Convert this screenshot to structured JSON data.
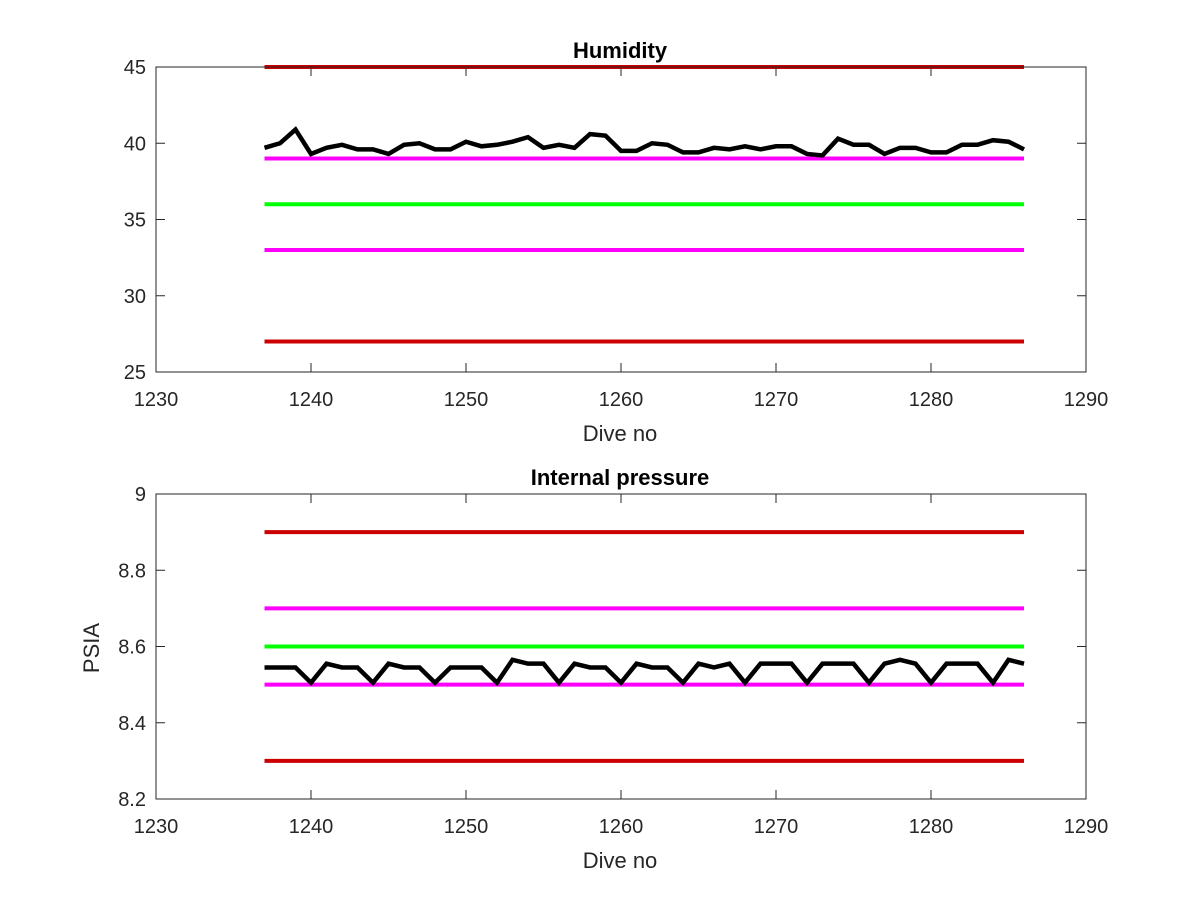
{
  "chart_data": [
    {
      "type": "line",
      "title": "Humidity",
      "xlabel": "Dive no",
      "ylabel": "",
      "xlim": [
        1230,
        1290
      ],
      "ylim": [
        25,
        45
      ],
      "xticks": [
        "1230",
        "1240",
        "1250",
        "1260",
        "1270",
        "1280",
        "1290"
      ],
      "yticks": [
        "25",
        "30",
        "35",
        "40",
        "45"
      ],
      "grid": false,
      "series": [
        {
          "color": "#cc0000",
          "x": [
            1237,
            1286
          ],
          "y": [
            45,
            45
          ]
        },
        {
          "color": "#cc0000",
          "x": [
            1237,
            1286
          ],
          "y": [
            27,
            27
          ]
        },
        {
          "color": "#ff00ff",
          "x": [
            1237,
            1286
          ],
          "y": [
            39,
            39
          ]
        },
        {
          "color": "#ff00ff",
          "x": [
            1237,
            1286
          ],
          "y": [
            33,
            33
          ]
        },
        {
          "color": "#00ff00",
          "x": [
            1237,
            1286
          ],
          "y": [
            36,
            36
          ]
        },
        {
          "color": "#000000",
          "x": [
            1237,
            1238,
            1239,
            1240,
            1241,
            1242,
            1243,
            1244,
            1245,
            1246,
            1247,
            1248,
            1249,
            1250,
            1251,
            1252,
            1253,
            1254,
            1255,
            1256,
            1257,
            1258,
            1259,
            1260,
            1261,
            1262,
            1263,
            1264,
            1265,
            1266,
            1267,
            1268,
            1269,
            1270,
            1271,
            1272,
            1273,
            1274,
            1275,
            1276,
            1277,
            1278,
            1279,
            1280,
            1281,
            1282,
            1283,
            1284,
            1285,
            1286
          ],
          "y": [
            39.7,
            40.0,
            40.9,
            39.3,
            39.7,
            39.9,
            39.6,
            39.6,
            39.3,
            39.9,
            40.0,
            39.6,
            39.6,
            40.1,
            39.8,
            39.9,
            40.1,
            40.4,
            39.7,
            39.9,
            39.7,
            40.6,
            40.5,
            39.5,
            39.5,
            40.0,
            39.9,
            39.4,
            39.4,
            39.7,
            39.6,
            39.8,
            39.6,
            39.8,
            39.8,
            39.3,
            39.2,
            40.3,
            39.9,
            39.9,
            39.3,
            39.7,
            39.7,
            39.4,
            39.4,
            39.9,
            39.9,
            40.2,
            40.1,
            39.6
          ]
        }
      ]
    },
    {
      "type": "line",
      "title": "Internal pressure",
      "xlabel": "Dive no",
      "ylabel": "PSIA",
      "xlim": [
        1230,
        1290
      ],
      "ylim": [
        8.2,
        9
      ],
      "xticks": [
        "1230",
        "1240",
        "1250",
        "1260",
        "1270",
        "1280",
        "1290"
      ],
      "yticks": [
        "8.2",
        "8.4",
        "8.6",
        "8.8",
        "9"
      ],
      "grid": false,
      "series": [
        {
          "color": "#cc0000",
          "x": [
            1237,
            1286
          ],
          "y": [
            8.9,
            8.9
          ]
        },
        {
          "color": "#cc0000",
          "x": [
            1237,
            1286
          ],
          "y": [
            8.3,
            8.3
          ]
        },
        {
          "color": "#ff00ff",
          "x": [
            1237,
            1286
          ],
          "y": [
            8.7,
            8.7
          ]
        },
        {
          "color": "#ff00ff",
          "x": [
            1237,
            1286
          ],
          "y": [
            8.5,
            8.5
          ]
        },
        {
          "color": "#00ff00",
          "x": [
            1237,
            1286
          ],
          "y": [
            8.6,
            8.6
          ]
        },
        {
          "color": "#000000",
          "x": [
            1237,
            1238,
            1239,
            1240,
            1241,
            1242,
            1243,
            1244,
            1245,
            1246,
            1247,
            1248,
            1249,
            1250,
            1251,
            1252,
            1253,
            1254,
            1255,
            1256,
            1257,
            1258,
            1259,
            1260,
            1261,
            1262,
            1263,
            1264,
            1265,
            1266,
            1267,
            1268,
            1269,
            1270,
            1271,
            1272,
            1273,
            1274,
            1275,
            1276,
            1277,
            1278,
            1279,
            1280,
            1281,
            1282,
            1283,
            1284,
            1285,
            1286
          ],
          "y": [
            8.545,
            8.545,
            8.545,
            8.505,
            8.555,
            8.545,
            8.545,
            8.505,
            8.555,
            8.545,
            8.545,
            8.505,
            8.545,
            8.545,
            8.545,
            8.505,
            8.565,
            8.555,
            8.555,
            8.505,
            8.555,
            8.545,
            8.545,
            8.505,
            8.555,
            8.545,
            8.545,
            8.505,
            8.555,
            8.545,
            8.555,
            8.505,
            8.555,
            8.555,
            8.555,
            8.505,
            8.555,
            8.555,
            8.555,
            8.505,
            8.555,
            8.565,
            8.555,
            8.505,
            8.555,
            8.555,
            8.555,
            8.505,
            8.565,
            8.555
          ]
        }
      ]
    }
  ]
}
